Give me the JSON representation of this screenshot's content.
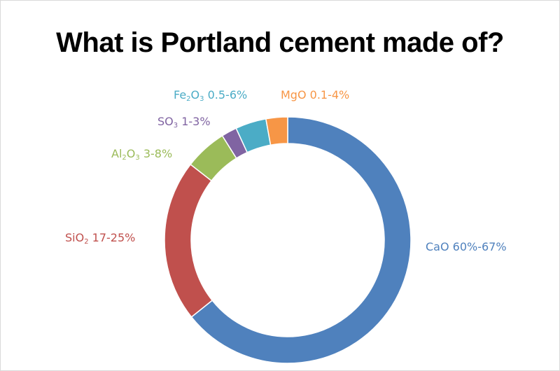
{
  "chart_data": {
    "type": "pie",
    "style": "donut",
    "title": "What is Portland cement made of?",
    "slices": [
      {
        "name": "CaO",
        "value": 63.5,
        "color": "#4f81bd",
        "label_parts": [
          {
            "t": "CaO  60%-67%"
          }
        ]
      },
      {
        "name": "SiO2",
        "value": 21,
        "color": "#c0504d",
        "label_parts": [
          {
            "t": "SiO"
          },
          {
            "t": "2",
            "sub": true
          },
          {
            "t": " 17-25%"
          }
        ]
      },
      {
        "name": "Al2O3",
        "value": 5.5,
        "color": "#9bbb59",
        "label_parts": [
          {
            "t": "Al"
          },
          {
            "t": "2",
            "sub": true
          },
          {
            "t": "O"
          },
          {
            "t": "3",
            "sub": true
          },
          {
            "t": "  3-8%"
          }
        ]
      },
      {
        "name": "SO3",
        "value": 2,
        "color": "#8064a2",
        "label_parts": [
          {
            "t": "SO"
          },
          {
            "t": "3",
            "sub": true
          },
          {
            "t": " 1-3%"
          }
        ]
      },
      {
        "name": "Fe2O3",
        "value": 4,
        "color": "#4bacc6",
        "label_parts": [
          {
            "t": "Fe"
          },
          {
            "t": "2",
            "sub": true
          },
          {
            "t": "O"
          },
          {
            "t": "3",
            "sub": true
          },
          {
            "t": " 0.5-6%"
          }
        ]
      },
      {
        "name": "MgO",
        "value": 2.8,
        "color": "#f79646",
        "label_parts": [
          {
            "t": "MgO 0.1-4%"
          }
        ]
      }
    ]
  }
}
